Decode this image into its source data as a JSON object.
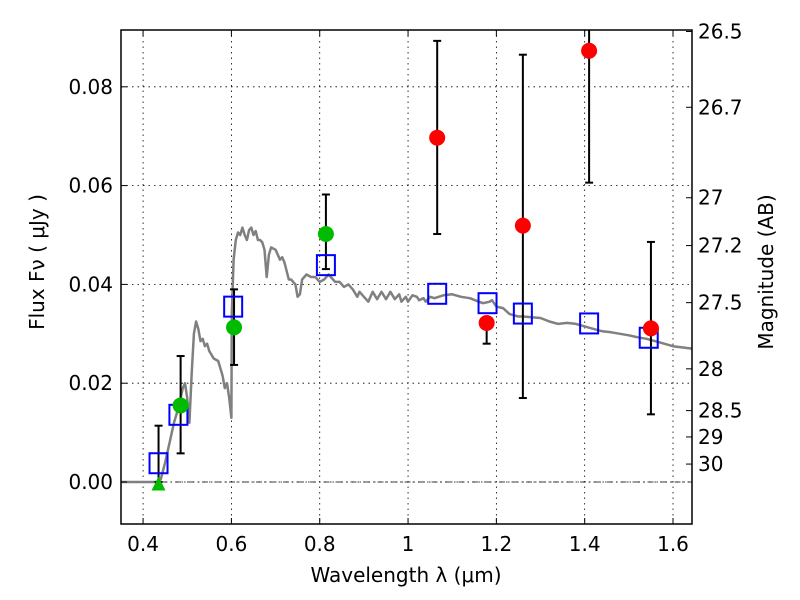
{
  "chart_data": {
    "type": "scatter",
    "title": "",
    "xlabel": "Wavelength  λ (μm)",
    "ylabel": "Flux  Fν  ( μJy )",
    "y2label": "Magnitude (AB)",
    "xlim": [
      0.35,
      1.643
    ],
    "ylim": [
      -0.0085,
      0.0915
    ],
    "grid": true,
    "x_ticks": [
      0.4,
      0.6,
      0.8,
      1.0,
      1.2,
      1.4,
      1.6
    ],
    "x_tick_labels": [
      "0.4",
      "0.6",
      "0.8",
      "1",
      "1.2",
      "1.4",
      "1.6"
    ],
    "y_ticks": [
      0.0,
      0.02,
      0.04,
      0.06,
      0.08
    ],
    "y_tick_labels": [
      "0.00",
      "0.02",
      "0.04",
      "0.06",
      "0.08"
    ],
    "y2_ticks": [
      26.5,
      26.7,
      27,
      27.2,
      27.5,
      28,
      28.5,
      29,
      30
    ],
    "y2_tick_labels": [
      "26.5",
      "26.7",
      "27",
      "27.2",
      "27.5",
      "28",
      "28.5",
      "29",
      "30"
    ],
    "zero_line": 0.0,
    "series": [
      {
        "name": "model-spectrum",
        "kind": "line",
        "color": "#808080",
        "points": [
          [
            0.35,
            0.0
          ],
          [
            0.4,
            0.0
          ],
          [
            0.43,
            0.0
          ],
          [
            0.44,
            0.0005
          ],
          [
            0.45,
            0.004
          ],
          [
            0.46,
            0.008
          ],
          [
            0.47,
            0.012
          ],
          [
            0.48,
            0.015
          ],
          [
            0.49,
            0.019
          ],
          [
            0.495,
            0.02
          ],
          [
            0.5,
            0.017
          ],
          [
            0.505,
            0.012
          ],
          [
            0.51,
            0.022
          ],
          [
            0.515,
            0.03
          ],
          [
            0.52,
            0.0325
          ],
          [
            0.525,
            0.031
          ],
          [
            0.53,
            0.0285
          ],
          [
            0.535,
            0.029
          ],
          [
            0.54,
            0.0275
          ],
          [
            0.545,
            0.028
          ],
          [
            0.55,
            0.0265
          ],
          [
            0.56,
            0.025
          ],
          [
            0.57,
            0.0245
          ],
          [
            0.575,
            0.023
          ],
          [
            0.58,
            0.0215
          ],
          [
            0.585,
            0.019
          ],
          [
            0.59,
            0.02
          ],
          [
            0.595,
            0.017
          ],
          [
            0.6,
            0.013
          ],
          [
            0.601,
            0.034
          ],
          [
            0.605,
            0.045
          ],
          [
            0.61,
            0.049
          ],
          [
            0.615,
            0.0505
          ],
          [
            0.62,
            0.05
          ],
          [
            0.625,
            0.0515
          ],
          [
            0.63,
            0.05
          ],
          [
            0.635,
            0.049
          ],
          [
            0.64,
            0.051
          ],
          [
            0.645,
            0.0515
          ],
          [
            0.65,
            0.05
          ],
          [
            0.655,
            0.0508
          ],
          [
            0.66,
            0.049
          ],
          [
            0.665,
            0.049
          ],
          [
            0.67,
            0.0485
          ],
          [
            0.675,
            0.047
          ],
          [
            0.68,
            0.0415
          ],
          [
            0.685,
            0.046
          ],
          [
            0.69,
            0.0475
          ],
          [
            0.7,
            0.047
          ],
          [
            0.71,
            0.045
          ],
          [
            0.715,
            0.0455
          ],
          [
            0.72,
            0.0445
          ],
          [
            0.73,
            0.041
          ],
          [
            0.735,
            0.041
          ],
          [
            0.745,
            0.04
          ],
          [
            0.75,
            0.0375
          ],
          [
            0.755,
            0.038
          ],
          [
            0.76,
            0.041
          ],
          [
            0.77,
            0.042
          ],
          [
            0.78,
            0.0415
          ],
          [
            0.79,
            0.0415
          ],
          [
            0.8,
            0.0405
          ],
          [
            0.81,
            0.041
          ],
          [
            0.82,
            0.042
          ],
          [
            0.825,
            0.0415
          ],
          [
            0.835,
            0.0405
          ],
          [
            0.845,
            0.0405
          ],
          [
            0.855,
            0.0395
          ],
          [
            0.865,
            0.04
          ],
          [
            0.875,
            0.039
          ],
          [
            0.885,
            0.0375
          ],
          [
            0.89,
            0.0385
          ],
          [
            0.9,
            0.0375
          ],
          [
            0.91,
            0.0365
          ],
          [
            0.92,
            0.0385
          ],
          [
            0.93,
            0.037
          ],
          [
            0.94,
            0.0385
          ],
          [
            0.95,
            0.037
          ],
          [
            0.96,
            0.0385
          ],
          [
            0.97,
            0.037
          ],
          [
            0.98,
            0.038
          ],
          [
            0.985,
            0.0365
          ],
          [
            0.995,
            0.0375
          ],
          [
            1.0,
            0.0365
          ],
          [
            1.01,
            0.0378
          ],
          [
            1.02,
            0.0375
          ],
          [
            1.025,
            0.0368
          ],
          [
            1.035,
            0.0372
          ],
          [
            1.04,
            0.0365
          ],
          [
            1.05,
            0.0375
          ],
          [
            1.06,
            0.0372
          ],
          [
            1.08,
            0.0378
          ],
          [
            1.1,
            0.038
          ],
          [
            1.12,
            0.0375
          ],
          [
            1.14,
            0.0372
          ],
          [
            1.16,
            0.0365
          ],
          [
            1.17,
            0.0362
          ],
          [
            1.185,
            0.0365
          ],
          [
            1.19,
            0.0368
          ],
          [
            1.2,
            0.0355
          ],
          [
            1.215,
            0.0352
          ],
          [
            1.23,
            0.034
          ],
          [
            1.25,
            0.0335
          ],
          [
            1.26,
            0.0335
          ],
          [
            1.3,
            0.0332
          ],
          [
            1.32,
            0.0325
          ],
          [
            1.34,
            0.032
          ],
          [
            1.36,
            0.0322
          ],
          [
            1.38,
            0.032
          ],
          [
            1.4,
            0.0315
          ],
          [
            1.42,
            0.031
          ],
          [
            1.44,
            0.0305
          ],
          [
            1.46,
            0.0303
          ],
          [
            1.48,
            0.03
          ],
          [
            1.5,
            0.0297
          ],
          [
            1.52,
            0.0293
          ],
          [
            1.54,
            0.029
          ],
          [
            1.56,
            0.0285
          ],
          [
            1.58,
            0.028
          ],
          [
            1.6,
            0.0275
          ],
          [
            1.643,
            0.027
          ]
        ]
      },
      {
        "name": "model-photometry",
        "kind": "open-square",
        "color": "#0000ff",
        "points": [
          [
            0.435,
            0.0038
          ],
          [
            0.48,
            0.0136
          ],
          [
            0.604,
            0.0355
          ],
          [
            0.814,
            0.0439
          ],
          [
            1.066,
            0.0381
          ],
          [
            1.18,
            0.0362
          ],
          [
            1.26,
            0.0341
          ],
          [
            1.41,
            0.0321
          ],
          [
            1.545,
            0.0292
          ]
        ]
      },
      {
        "name": "detections",
        "kind": "filled-circle",
        "color": "#00bb00",
        "points": [
          [
            0.485,
            0.0155
          ],
          [
            0.606,
            0.0313
          ],
          [
            0.814,
            0.0502
          ]
        ]
      },
      {
        "name": "upper-limit",
        "kind": "filled-triangle",
        "color": "#00bb00",
        "points": [
          [
            0.435,
            -0.0005
          ]
        ]
      },
      {
        "name": "low-snr",
        "kind": "filled-circle",
        "color": "#ff0000",
        "points": [
          [
            1.066,
            0.0697
          ],
          [
            1.178,
            0.0322
          ],
          [
            1.26,
            0.0519
          ],
          [
            1.41,
            0.0873
          ],
          [
            1.55,
            0.0311
          ]
        ]
      }
    ],
    "errorbars": [
      {
        "x": 0.435,
        "low": 0.0,
        "high": 0.0114
      },
      {
        "x": 0.485,
        "low": 0.0058,
        "high": 0.0255
      },
      {
        "x": 0.606,
        "low": 0.0237,
        "high": 0.039
      },
      {
        "x": 0.814,
        "low": 0.0431,
        "high": 0.0582
      },
      {
        "x": 1.066,
        "low": 0.0502,
        "high": 0.0893
      },
      {
        "x": 1.178,
        "low": 0.028,
        "high": 0.0329
      },
      {
        "x": 1.26,
        "low": 0.017,
        "high": 0.0865
      },
      {
        "x": 1.41,
        "low": 0.0606,
        "high": 0.0915
      },
      {
        "x": 1.55,
        "low": 0.0137,
        "high": 0.0486
      }
    ]
  }
}
